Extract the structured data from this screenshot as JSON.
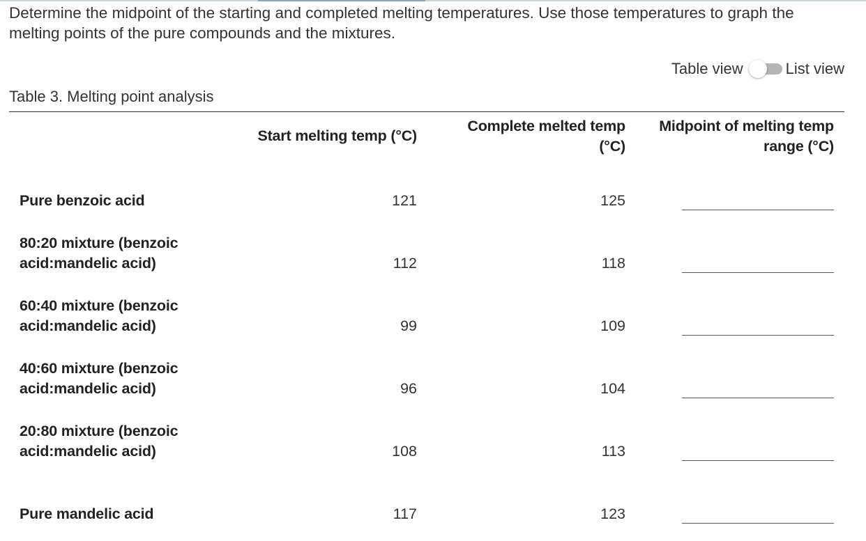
{
  "instructions": "Determine the midpoint of the starting and completed melting temperatures. Use those temperatures to graph the melting points of the pure compounds and the mixtures.",
  "view_toggle": {
    "left_label": "Table view",
    "right_label": "List view"
  },
  "table": {
    "caption": "Table 3. Melting point analysis",
    "headers": {
      "start": "Start melting temp (°C)",
      "complete_line1": "Complete melted temp",
      "complete_line2": "(°C)",
      "midpoint_line1": "Midpoint of melting temp",
      "midpoint_line2": "range (°C)"
    },
    "rows": [
      {
        "label_line1": "Pure benzoic acid",
        "label_line2": "",
        "start": "121",
        "complete": "125",
        "midpoint": ""
      },
      {
        "label_line1": "80:20 mixture (benzoic",
        "label_line2": "acid:mandelic acid)",
        "start": "112",
        "complete": "118",
        "midpoint": ""
      },
      {
        "label_line1": "60:40 mixture (benzoic",
        "label_line2": "acid:mandelic acid)",
        "start": "99",
        "complete": "109",
        "midpoint": ""
      },
      {
        "label_line1": "40:60 mixture (benzoic",
        "label_line2": "acid:mandelic acid)",
        "start": "96",
        "complete": "104",
        "midpoint": ""
      },
      {
        "label_line1": "20:80 mixture (benzoic",
        "label_line2": "acid:mandelic acid)",
        "start": "108",
        "complete": "113",
        "midpoint": ""
      },
      {
        "label_line1": "Pure mandelic acid",
        "label_line2": "",
        "start": "117",
        "complete": "123",
        "midpoint": ""
      }
    ]
  }
}
